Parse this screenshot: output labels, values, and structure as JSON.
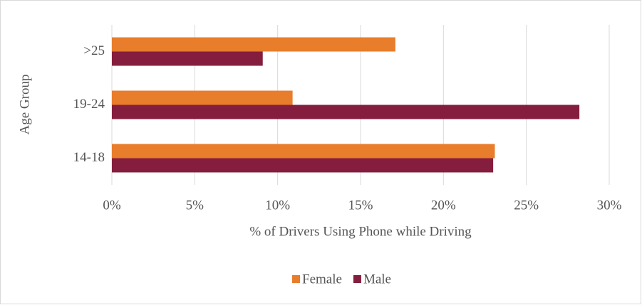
{
  "chart_data": {
    "type": "hbar",
    "x_label": "% of Drivers Using Phone while Driving",
    "y_label": "Age Group",
    "categories": [
      "14-18",
      "19-24",
      ">25"
    ],
    "series": [
      {
        "name": "Female",
        "color": "#e87d2c",
        "values": [
          23.1,
          10.9,
          17.1
        ]
      },
      {
        "name": "Male",
        "color": "#851e3e",
        "values": [
          23.0,
          28.2,
          9.1
        ]
      }
    ],
    "xlim": [
      0,
      30
    ],
    "xticks": [
      {
        "value": 0,
        "label": "0%"
      },
      {
        "value": 5,
        "label": "5%"
      },
      {
        "value": 10,
        "label": "10%"
      },
      {
        "value": 15,
        "label": "15%"
      },
      {
        "value": 20,
        "label": "20%"
      },
      {
        "value": 25,
        "label": "25%"
      },
      {
        "value": 30,
        "label": "30%"
      }
    ],
    "grid": true,
    "legend": "bottom"
  }
}
